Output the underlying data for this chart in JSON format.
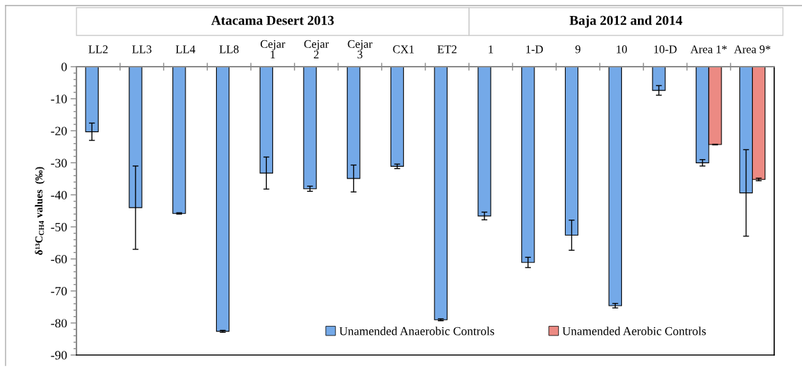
{
  "chart_data": {
    "type": "bar",
    "annotations": [
      "Atacama Desert 2013",
      "Baja 2012 and 2014"
    ],
    "ylabel": "δ¹³C$_{CH4}$ values  (‰)",
    "categories": [
      "LL2",
      "LL3",
      "LL4",
      "LL8",
      "Cejar\n1",
      "Cejar\n2",
      "Cejar\n3",
      "CX1",
      "ET2",
      "1",
      "1-D",
      "9",
      "10",
      "10-D",
      "Area 1*",
      "Area 9*"
    ],
    "series": [
      {
        "name": "Unamended Anaerobic Controls",
        "color": "#74a9e8",
        "values": [
          -20.3,
          -44,
          -45.8,
          -82.6,
          -33.2,
          -38.1,
          -34.9,
          -31.1,
          -79,
          -46.6,
          -61.1,
          -52.6,
          -74.6,
          -7.4,
          -30.0,
          -39.4
        ],
        "errors": [
          2.7,
          13,
          0.2,
          0.3,
          5,
          0.8,
          4.2,
          0.7,
          0.3,
          1.2,
          1.6,
          4.7,
          0.7,
          1.5,
          1,
          13.5
        ]
      },
      {
        "name": "Unamended Aerobic Controls",
        "color": "#ec8a83",
        "values": [
          null,
          null,
          null,
          null,
          null,
          null,
          null,
          null,
          null,
          null,
          null,
          null,
          null,
          null,
          -24.3,
          -35.2
        ],
        "errors": [
          null,
          null,
          null,
          null,
          null,
          null,
          null,
          null,
          null,
          null,
          null,
          null,
          null,
          null,
          0.1,
          0.4
        ]
      }
    ],
    "ylim": [
      -90,
      0
    ],
    "yticks": [
      0,
      {
        "value": -2,
        "label": null
      },
      {
        "value": -4,
        "label": null
      },
      {
        "value": -6,
        "label": null
      },
      {
        "value": -8,
        "label": null
      },
      -10,
      {
        "value": -12,
        "label": null
      },
      {
        "value": -14,
        "label": null
      },
      {
        "value": -16,
        "label": null
      },
      {
        "value": -18,
        "label": null
      },
      -20,
      {
        "value": -22,
        "label": null
      },
      {
        "value": -24,
        "label": null
      },
      {
        "value": -26,
        "label": null
      },
      {
        "value": -28,
        "label": null
      },
      -30,
      {
        "value": -32,
        "label": null
      },
      {
        "value": -34,
        "label": null
      },
      {
        "value": -36,
        "label": null
      },
      {
        "value": -38,
        "label": null
      },
      -40,
      {
        "value": -42,
        "label": null
      },
      {
        "value": -44,
        "label": null
      },
      {
        "value": -46,
        "label": null
      },
      {
        "value": -48,
        "label": null
      },
      -50,
      {
        "value": -52,
        "label": null
      },
      {
        "value": -54,
        "label": null
      },
      {
        "value": -56,
        "label": null
      },
      {
        "value": -58,
        "label": null
      },
      -60,
      {
        "value": -62,
        "label": null
      },
      {
        "value": -64,
        "label": null
      },
      {
        "value": -66,
        "label": null
      },
      {
        "value": -68,
        "label": null
      },
      -70,
      {
        "value": -72,
        "label": null
      },
      {
        "value": -74,
        "label": null
      },
      {
        "value": -76,
        "label": null
      },
      {
        "value": -78,
        "label": null
      },
      -80,
      {
        "value": -82,
        "label": null
      },
      {
        "value": -84,
        "label": null
      },
      {
        "value": -86,
        "label": null
      },
      {
        "value": -88,
        "label": null
      },
      -90
    ],
    "legend": "bottom",
    "grid": false
  }
}
